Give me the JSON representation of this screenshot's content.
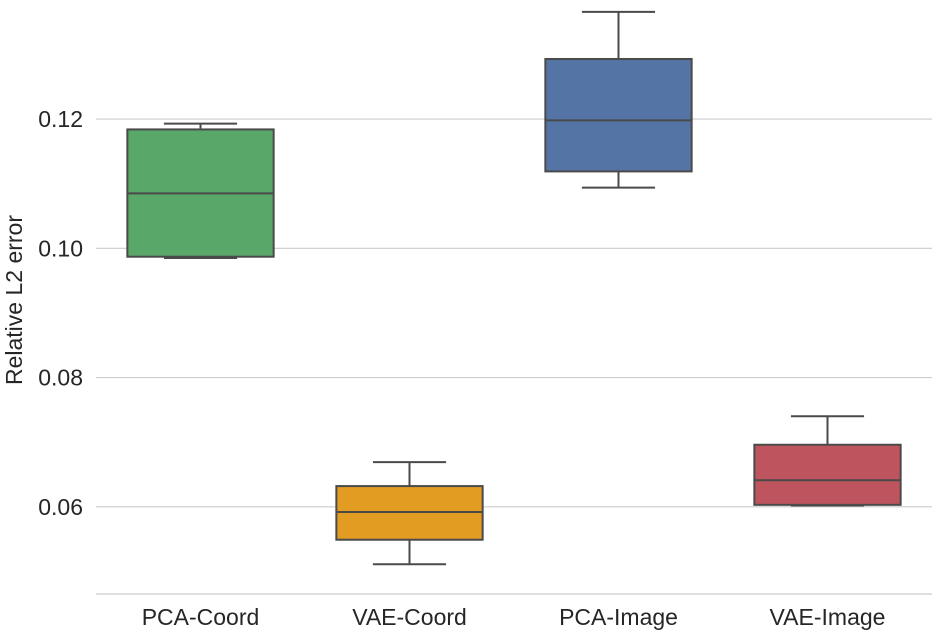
{
  "chart_data": {
    "type": "box",
    "title": "",
    "xlabel": "",
    "ylabel": "Relative L2 error",
    "ylim": [
      0.0465,
      0.1375
    ],
    "yticks": [
      0.06,
      0.08,
      0.1,
      0.12
    ],
    "ytick_labels": [
      "0.06",
      "0.08",
      "0.10",
      "0.12"
    ],
    "grid": "horizontal",
    "categories": [
      "PCA-Coord",
      "VAE-Coord",
      "PCA-Image",
      "VAE-Image"
    ],
    "boxes": [
      {
        "name": "PCA-Coord",
        "color": "#59A869",
        "whislo": 0.0985,
        "q1": 0.0987,
        "med": 0.1085,
        "q3": 0.1184,
        "whishi": 0.1193
      },
      {
        "name": "VAE-Coord",
        "color": "#E29C22",
        "whislo": 0.0511,
        "q1": 0.0549,
        "med": 0.0592,
        "q3": 0.0632,
        "whishi": 0.0669
      },
      {
        "name": "PCA-Image",
        "color": "#5574A6",
        "whislo": 0.1094,
        "q1": 0.1119,
        "med": 0.1198,
        "q3": 0.1293,
        "whishi": 0.1366
      },
      {
        "name": "VAE-Image",
        "color": "#BE555E",
        "whislo": 0.0602,
        "q1": 0.0603,
        "med": 0.0641,
        "q3": 0.0696,
        "whishi": 0.074
      }
    ]
  }
}
